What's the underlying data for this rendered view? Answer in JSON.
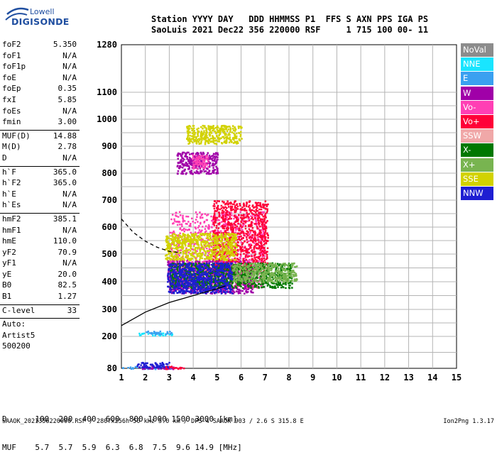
{
  "logo": {
    "line1": "Lowell",
    "line2": "DIGISONDE"
  },
  "header": {
    "line1": "Station YYYY DAY   DDD HHMMSS P1  FFS S AXN PPS IGA PS",
    "line2": "SaoLuis 2021 Dec22 356 220000 RSF     1 715 100 00- 11"
  },
  "params": [
    {
      "name": "foF2",
      "value": "5.350"
    },
    {
      "name": "foF1",
      "value": "N/A"
    },
    {
      "name": "foF1p",
      "value": "N/A"
    },
    {
      "name": "foE",
      "value": "N/A"
    },
    {
      "name": "foEp",
      "value": "0.35"
    },
    {
      "name": "fxI",
      "value": "5.85"
    },
    {
      "name": "foEs",
      "value": "N/A"
    },
    {
      "name": "fmin",
      "value": "3.00"
    },
    {
      "divider": true
    },
    {
      "name": "MUF(D)",
      "value": "14.88"
    },
    {
      "name": "M(D)",
      "value": "2.78"
    },
    {
      "name": "D",
      "value": "N/A"
    },
    {
      "divider": true
    },
    {
      "name": "h`F",
      "value": "365.0"
    },
    {
      "name": "h`F2",
      "value": "365.0"
    },
    {
      "name": "h`E",
      "value": "N/A"
    },
    {
      "name": "h`Es",
      "value": "N/A"
    },
    {
      "divider": true
    },
    {
      "name": "hmF2",
      "value": "385.1"
    },
    {
      "name": "hmF1",
      "value": "N/A"
    },
    {
      "name": "hmE",
      "value": "110.0"
    },
    {
      "name": "yF2",
      "value": "70.9"
    },
    {
      "name": "yF1",
      "value": "N/A"
    },
    {
      "name": "yE",
      "value": "20.0"
    },
    {
      "name": "B0",
      "value": "82.5"
    },
    {
      "name": "B1",
      "value": "1.27"
    },
    {
      "divider": true
    },
    {
      "name": "C-level",
      "value": "33"
    },
    {
      "divider": true
    },
    {
      "name": "Auto:",
      "value": ""
    },
    {
      "name": "Artist5",
      "value": ""
    },
    {
      "name": "500200",
      "value": ""
    }
  ],
  "legend": [
    {
      "label": "NoVal",
      "color": "#8c8c8c"
    },
    {
      "label": "NNE",
      "color": "#19e5ff"
    },
    {
      "label": "E",
      "color": "#3aa0f0"
    },
    {
      "label": "W",
      "color": "#a000a8"
    },
    {
      "label": "Vo-",
      "color": "#ff3fb4"
    },
    {
      "label": "Vo+",
      "color": "#ff0038"
    },
    {
      "label": "SSW",
      "color": "#f0a8a8"
    },
    {
      "label": "X-",
      "color": "#007800"
    },
    {
      "label": "X+",
      "color": "#78b450"
    },
    {
      "label": "SSE",
      "color": "#d2d200"
    },
    {
      "label": "NNW",
      "color": "#1e1ed2"
    }
  ],
  "axes": {
    "x_ticks": [
      "1",
      "2",
      "3",
      "4",
      "5",
      "6",
      "7",
      "8",
      "9",
      "10",
      "11",
      "12",
      "13",
      "14",
      "15"
    ],
    "y_ticks": [
      "80",
      "200",
      "300",
      "400",
      "500",
      "600",
      "700",
      "800",
      "900",
      "1000",
      "1100",
      "1280"
    ]
  },
  "chart_data": {
    "type": "scatter",
    "xlim": [
      1,
      15
    ],
    "ylim": [
      80,
      1280
    ],
    "xlabel": "",
    "ylabel": "",
    "x_ticks": [
      1,
      2,
      3,
      4,
      5,
      6,
      7,
      8,
      9,
      10,
      11,
      12,
      13,
      14,
      15
    ],
    "y_ticks": [
      80,
      200,
      300,
      400,
      500,
      600,
      700,
      800,
      900,
      1000,
      1100,
      1280
    ],
    "grid": true,
    "legend_placement": "right",
    "clusters": [
      {
        "direction": "E",
        "x": [
          1.0,
          3.2
        ],
        "y": [
          80,
          90
        ]
      },
      {
        "direction": "W",
        "x": [
          1.7,
          3.5
        ],
        "y": [
          80,
          90
        ]
      },
      {
        "direction": "NNW",
        "x": [
          1.6,
          3.0
        ],
        "y": [
          85,
          105
        ]
      },
      {
        "direction": "Vo+",
        "x": [
          2.8,
          3.6
        ],
        "y": [
          80,
          90
        ]
      },
      {
        "direction": "NNE",
        "x": [
          1.7,
          3.1
        ],
        "y": [
          205,
          215
        ]
      },
      {
        "direction": "E",
        "x": [
          2.0,
          3.1
        ],
        "y": [
          210,
          222
        ]
      },
      {
        "direction": "W",
        "x": [
          2.9,
          6.5
        ],
        "y": [
          360,
          480
        ]
      },
      {
        "direction": "Vo-",
        "x": [
          3.0,
          7.0
        ],
        "y": [
          380,
          660
        ]
      },
      {
        "direction": "Vo+",
        "x": [
          4.8,
          7.1
        ],
        "y": [
          440,
          700
        ]
      },
      {
        "direction": "SSE",
        "x": [
          2.8,
          5.8
        ],
        "y": [
          480,
          580
        ]
      },
      {
        "direction": "X-",
        "x": [
          3.0,
          8.1
        ],
        "y": [
          380,
          470
        ]
      },
      {
        "direction": "X+",
        "x": [
          5.6,
          8.3
        ],
        "y": [
          400,
          470
        ]
      },
      {
        "direction": "NNW",
        "x": [
          2.9,
          5.6
        ],
        "y": [
          360,
          470
        ]
      },
      {
        "direction": "SSE",
        "x": [
          3.7,
          6.0
        ],
        "y": [
          910,
          980
        ]
      },
      {
        "direction": "W",
        "x": [
          3.3,
          5.0
        ],
        "y": [
          800,
          880
        ]
      },
      {
        "direction": "Vo-",
        "x": [
          3.9,
          4.6
        ],
        "y": [
          820,
          870
        ]
      }
    ],
    "trace_virtual_height": {
      "name": "h`F",
      "x": [
        1.0,
        2.0,
        3.0,
        4.0,
        5.0,
        5.35
      ],
      "y": [
        240,
        290,
        325,
        350,
        375,
        385
      ]
    },
    "trace_ordinary": {
      "x": [
        1.0,
        1.5,
        2.0,
        2.5,
        3.0,
        3.5
      ],
      "y": [
        630,
        580,
        548,
        525,
        510,
        505
      ]
    },
    "mufd_table": {
      "D_label": "D",
      "MUF_label": "MUF",
      "unit_D": "[km]",
      "unit_MUF": "[MHz]",
      "D": [
        "100",
        "200",
        "400",
        "600",
        "800",
        "1000",
        "1500",
        "3000"
      ],
      "MUF": [
        "5.7",
        "5.7",
        "5.9",
        "6.3",
        "6.8",
        "7.5",
        "9.6",
        "14.9"
      ]
    }
  },
  "footer": {
    "d_line": "D      100  200  400  600  800 1000 1500 3000 [km]",
    "muf_line": "MUF    5.7  5.7  5.9  6.3  6.8  7.5  9.6 14.9 [MHz]"
  },
  "status": "SAAOK_2021356220000.RSF / 280fx256h 50 kHz 5.0 km / DPS-4 SAAOK 903 / 2.6 S 315.8 E",
  "version": "Ion2Png 1.3.17"
}
